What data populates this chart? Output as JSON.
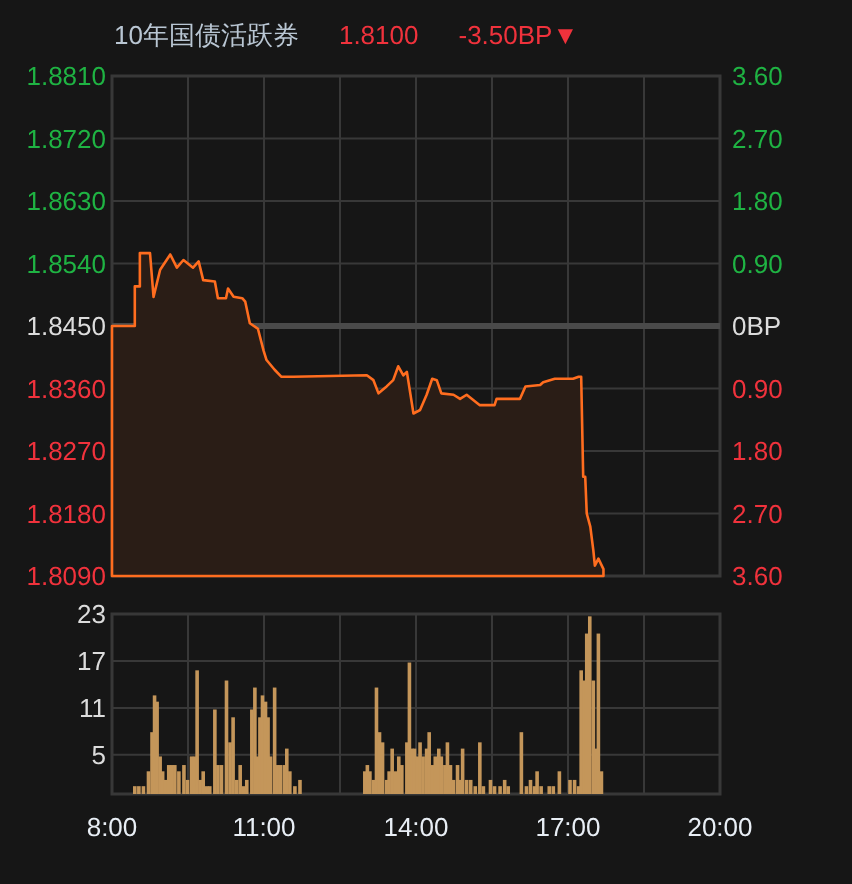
{
  "chart_data": [
    {
      "type": "area",
      "title": "10年国债活跃券",
      "annotations": [
        "1.8100",
        "-3.50BP▼"
      ],
      "xlim": [
        8,
        20
      ],
      "xticks": [
        {
          "value": 8,
          "label": null
        },
        {
          "value": 9.5,
          "label": null
        },
        {
          "value": 11,
          "label": null
        },
        {
          "value": 12.5,
          "label": null
        },
        {
          "value": 14,
          "label": null
        },
        {
          "value": 15.5,
          "label": null
        },
        {
          "value": 17,
          "label": null
        },
        {
          "value": 18.5,
          "label": null
        },
        {
          "value": 20,
          "label": null
        }
      ],
      "tick_labels": "y",
      "ylim": [
        1.809,
        1.881
      ],
      "yticks": [
        {
          "value": 1.881,
          "label": "1.8810"
        },
        {
          "value": 1.872,
          "label": "1.8720"
        },
        {
          "value": 1.863,
          "label": "1.8630"
        },
        {
          "value": 1.854,
          "label": "1.8540"
        },
        {
          "value": 1.845,
          "label": "1.8450"
        },
        {
          "value": 1.836,
          "label": "1.8360"
        },
        {
          "value": 1.827,
          "label": "1.8270"
        },
        {
          "value": 1.818,
          "label": "1.8180"
        },
        {
          "value": 1.809,
          "label": "1.8090"
        }
      ],
      "y2lim": [
        -3.6,
        3.6
      ],
      "y2ticks": [
        {
          "value": 3.6,
          "label": "3.60"
        },
        {
          "value": 2.7,
          "label": "2.70"
        },
        {
          "value": 1.8,
          "label": "1.80"
        },
        {
          "value": 0.9,
          "label": "0.90"
        },
        {
          "value": 0,
          "label": "0BP"
        },
        {
          "value": -0.9,
          "label": "0.90"
        },
        {
          "value": -1.8,
          "label": "1.80"
        },
        {
          "value": -2.7,
          "label": "2.70"
        },
        {
          "value": -3.6,
          "label": "3.60"
        }
      ],
      "grid": true,
      "ref_lines": [
        {
          "axis": "y",
          "value": 1.845,
          "color": "#4a4a4a"
        }
      ],
      "series": [
        {
          "color": "#ff6d1f",
          "x": [
            8,
            8.45,
            8.45,
            8.55,
            8.55,
            8.75,
            8.82,
            8.95,
            9.15,
            9.28,
            9.41,
            9.6,
            9.71,
            9.8,
            10.03,
            10.09,
            10.25,
            10.29,
            10.4,
            10.57,
            10.63,
            10.72,
            10.88,
            10.99,
            11.05,
            11.21,
            11.34,
            11.58,
            13.03,
            13.16,
            13.26,
            13.42,
            13.55,
            13.65,
            13.75,
            13.82,
            13.95,
            14.08,
            14.21,
            14.32,
            14.41,
            14.5,
            14.74,
            14.87,
            15.0,
            15.26,
            15.55,
            15.59,
            16.05,
            16.16,
            16.45,
            16.51,
            16.74,
            17.1,
            17.21,
            17.26,
            17.3,
            17.34,
            17.37,
            17.44,
            17.5,
            17.53,
            17.6,
            17.7
          ],
          "values": [
            1.845,
            1.845,
            1.8507,
            1.8507,
            1.8555,
            1.8555,
            1.8492,
            1.8531,
            1.8553,
            1.8534,
            1.8545,
            1.8534,
            1.8543,
            1.8516,
            1.8514,
            1.849,
            1.849,
            1.8504,
            1.8492,
            1.849,
            1.8485,
            1.8454,
            1.8446,
            1.8415,
            1.8401,
            1.8387,
            1.8377,
            1.8377,
            1.8379,
            1.8372,
            1.8353,
            1.8363,
            1.8372,
            1.8392,
            1.8379,
            1.8384,
            1.8324,
            1.8329,
            1.8351,
            1.8374,
            1.8372,
            1.8353,
            1.8351,
            1.8345,
            1.8351,
            1.8336,
            1.8336,
            1.8345,
            1.8345,
            1.8363,
            1.8365,
            1.8369,
            1.8374,
            1.8374,
            1.8377,
            1.8377,
            1.8233,
            1.8233,
            1.818,
            1.8161,
            1.8127,
            1.8105,
            1.8115,
            1.81
          ]
        }
      ]
    },
    {
      "type": "bar",
      "color": "#c4965a",
      "xlim": [
        8,
        20
      ],
      "xticks": [
        {
          "value": 8,
          "label": "8:00"
        },
        {
          "value": 9.5,
          "label": null
        },
        {
          "value": 11,
          "label": "11:00"
        },
        {
          "value": 12.5,
          "label": null
        },
        {
          "value": 14,
          "label": "14:00"
        },
        {
          "value": 15.5,
          "label": null
        },
        {
          "value": 17,
          "label": "17:00"
        },
        {
          "value": 18.5,
          "label": null
        },
        {
          "value": 20,
          "label": "20:00"
        }
      ],
      "ylim": [
        0,
        23
      ],
      "yticks": [
        5,
        11,
        17,
        23
      ],
      "grid": true,
      "x": [
        8.45,
        8.53,
        8.62,
        8.72,
        8.79,
        8.84,
        8.89,
        8.95,
        9.0,
        9.05,
        9.12,
        9.18,
        9.24,
        9.32,
        9.42,
        9.49,
        9.57,
        9.63,
        9.68,
        9.74,
        9.8,
        9.87,
        9.93,
        10.03,
        10.09,
        10.16,
        10.26,
        10.33,
        10.39,
        10.46,
        10.53,
        10.59,
        10.66,
        10.76,
        10.82,
        10.87,
        10.92,
        10.97,
        11.03,
        11.08,
        11.13,
        11.21,
        11.26,
        11.32,
        11.4,
        11.45,
        11.51,
        11.61,
        11.71,
        12.99,
        13.04,
        13.09,
        13.16,
        13.22,
        13.28,
        13.34,
        13.42,
        13.47,
        13.53,
        13.59,
        13.66,
        13.72,
        13.82,
        13.87,
        13.92,
        13.97,
        14.03,
        14.08,
        14.14,
        14.21,
        14.26,
        14.32,
        14.38,
        14.45,
        14.5,
        14.57,
        14.62,
        14.68,
        14.74,
        14.82,
        14.87,
        14.92,
        15.0,
        15.08,
        15.17,
        15.26,
        15.33,
        15.47,
        15.55,
        15.66,
        15.75,
        15.82,
        16.08,
        16.18,
        16.26,
        16.34,
        16.39,
        16.47,
        16.63,
        16.71,
        16.83,
        17.04,
        17.13,
        17.21,
        17.26,
        17.32,
        17.37,
        17.43,
        17.5,
        17.55,
        17.6,
        17.66
      ],
      "values": [
        1.0,
        1.0,
        1.0,
        2.9,
        7.9,
        12.6,
        11.8,
        4.8,
        2.9,
        1.8,
        3.7,
        3.7,
        3.7,
        2.9,
        3.7,
        1.8,
        4.8,
        4.8,
        15.8,
        1.8,
        2.9,
        1.0,
        1.0,
        10.8,
        3.7,
        3.7,
        14.5,
        6.6,
        9.8,
        1.8,
        3.7,
        1.0,
        1.8,
        10.8,
        13.6,
        4.8,
        9.8,
        12.6,
        11.8,
        9.8,
        4.8,
        13.6,
        3.7,
        3.7,
        3.7,
        5.8,
        2.9,
        1.0,
        1.8,
        2.9,
        3.7,
        2.9,
        1.8,
        13.6,
        7.9,
        6.6,
        1.8,
        2.9,
        5.8,
        2.9,
        4.8,
        3.7,
        6.6,
        16.8,
        5.8,
        5.8,
        4.8,
        6.6,
        4.8,
        5.8,
        7.9,
        3.7,
        4.8,
        5.8,
        4.8,
        3.7,
        6.6,
        3.7,
        1.8,
        3.7,
        1.8,
        5.8,
        1.8,
        1.8,
        1.0,
        6.6,
        1.0,
        1.8,
        1.0,
        1.0,
        1.8,
        1.0,
        7.9,
        1.0,
        1.8,
        1.0,
        2.9,
        1.0,
        1.0,
        1.0,
        2.9,
        1.8,
        1.8,
        1.0,
        15.8,
        14.5,
        20.5,
        22.7,
        14.5,
        5.8,
        20.5,
        2.9
      ]
    }
  ]
}
